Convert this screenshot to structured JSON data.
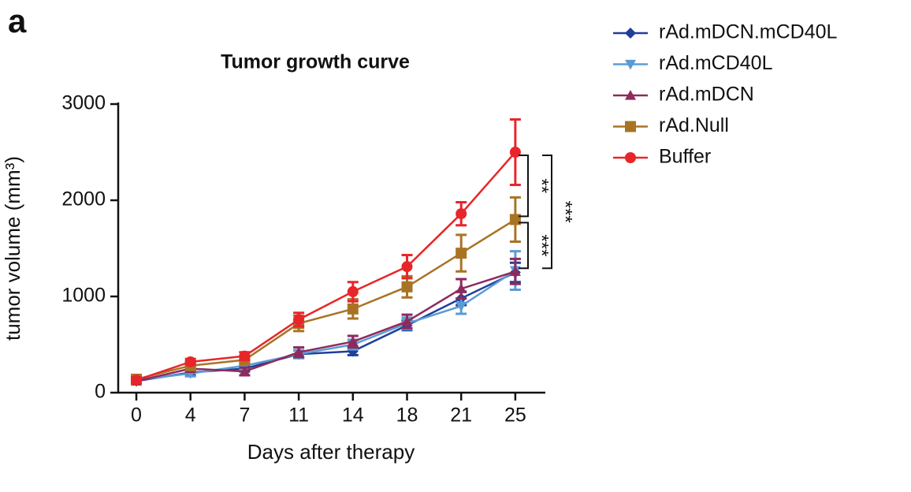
{
  "panel_label": "a",
  "chart_data": {
    "type": "line",
    "title": "Tumor growth curve",
    "x_label": "Days after therapy",
    "y_label": "tumor volume (mm³)",
    "categories": [
      "0",
      "4",
      "7",
      "11",
      "14",
      "18",
      "21",
      "25"
    ],
    "ylim": [
      0,
      3000
    ],
    "yticks": [
      0,
      1000,
      2000,
      3000
    ],
    "series": [
      {
        "name": "rAd.mDCN.mCD40L",
        "color": "#1f3f99",
        "marker": "diamond",
        "values": [
          120,
          210,
          250,
          400,
          430,
          700,
          980,
          1250
        ],
        "errors": [
          20,
          30,
          30,
          40,
          40,
          50,
          70,
          100
        ]
      },
      {
        "name": "rAd.mCD40L",
        "color": "#5b9bd5",
        "marker": "triangle-down",
        "values": [
          130,
          200,
          280,
          400,
          500,
          720,
          900,
          1270
        ],
        "errors": [
          20,
          30,
          40,
          40,
          50,
          60,
          80,
          200
        ]
      },
      {
        "name": "rAd.mDCN",
        "color": "#8e2a5c",
        "marker": "triangle-up",
        "values": [
          120,
          250,
          220,
          420,
          530,
          740,
          1080,
          1260
        ],
        "errors": [
          20,
          30,
          40,
          50,
          60,
          70,
          100,
          130
        ]
      },
      {
        "name": "rAd.Null",
        "color": "#a87424",
        "marker": "square",
        "values": [
          140,
          280,
          340,
          720,
          870,
          1100,
          1450,
          1800
        ],
        "errors": [
          20,
          30,
          40,
          80,
          100,
          110,
          190,
          230
        ]
      },
      {
        "name": "Buffer",
        "color": "#e8262a",
        "marker": "circle",
        "values": [
          130,
          320,
          380,
          760,
          1050,
          1310,
          1860,
          2500
        ],
        "errors": [
          30,
          30,
          40,
          70,
          100,
          120,
          120,
          340
        ]
      }
    ],
    "annotations": [
      "**",
      "***",
      "***"
    ]
  }
}
